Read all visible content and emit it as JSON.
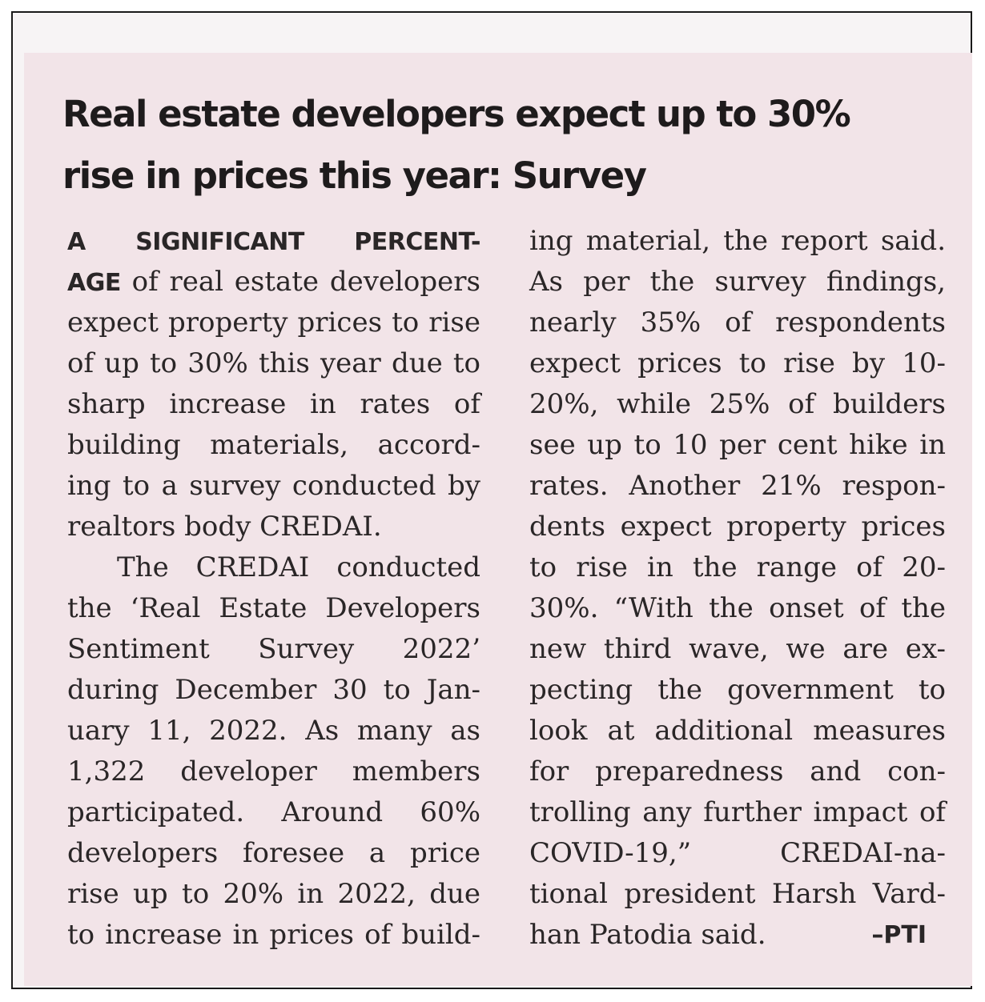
{
  "article": {
    "headline_lines": [
      "Real estate developers expect up to 30%",
      "rise in prices this year: Survey"
    ],
    "left_column": [
      [
        "A SIGNIFICANT PERCENT-",
        ""
      ],
      [
        "AGE",
        " of real estate developers"
      ],
      [
        "",
        "expect property prices to rise"
      ],
      [
        "",
        "of up to 30% this year due to"
      ],
      [
        "",
        "sharp increase in rates of"
      ],
      [
        "",
        "building materials, accord-"
      ],
      [
        "",
        "ing to a survey conducted by"
      ],
      [
        "",
        "realtors body CREDAI."
      ],
      [
        "",
        "The CREDAI conducted"
      ],
      [
        "",
        "the ‘Real Estate Developers"
      ],
      [
        "",
        "Sentiment Survey 2022’"
      ],
      [
        "",
        "during December 30 to Jan-"
      ],
      [
        "",
        "uary 11, 2022. As many as"
      ],
      [
        "",
        "1,322 developer members"
      ],
      [
        "",
        "participated. Around 60%"
      ],
      [
        "",
        "developers foresee a price"
      ],
      [
        "",
        "rise up to 20% in 2022, due"
      ],
      [
        "",
        "to increase in prices of build-"
      ]
    ],
    "right_column": [
      "ing material, the report said.",
      "As per the survey findings,",
      "nearly 35% of respondents",
      "expect prices to rise by 10-",
      "20%, while 25% of builders",
      "see up to 10 per cent hike in",
      "rates. Another 21% respon-",
      "dents expect property prices",
      "to rise in the range of 20-",
      "30%. “With the onset of the",
      "new third wave, we are ex-",
      "pecting the government to",
      "look at additional measures",
      "for preparedness and con-",
      "trolling any further impact of",
      "COVID-19,” CREDAI-na-",
      "tional president Harsh Vard-"
    ],
    "final_line": "han Patodia said.",
    "byline": "–PTI"
  }
}
